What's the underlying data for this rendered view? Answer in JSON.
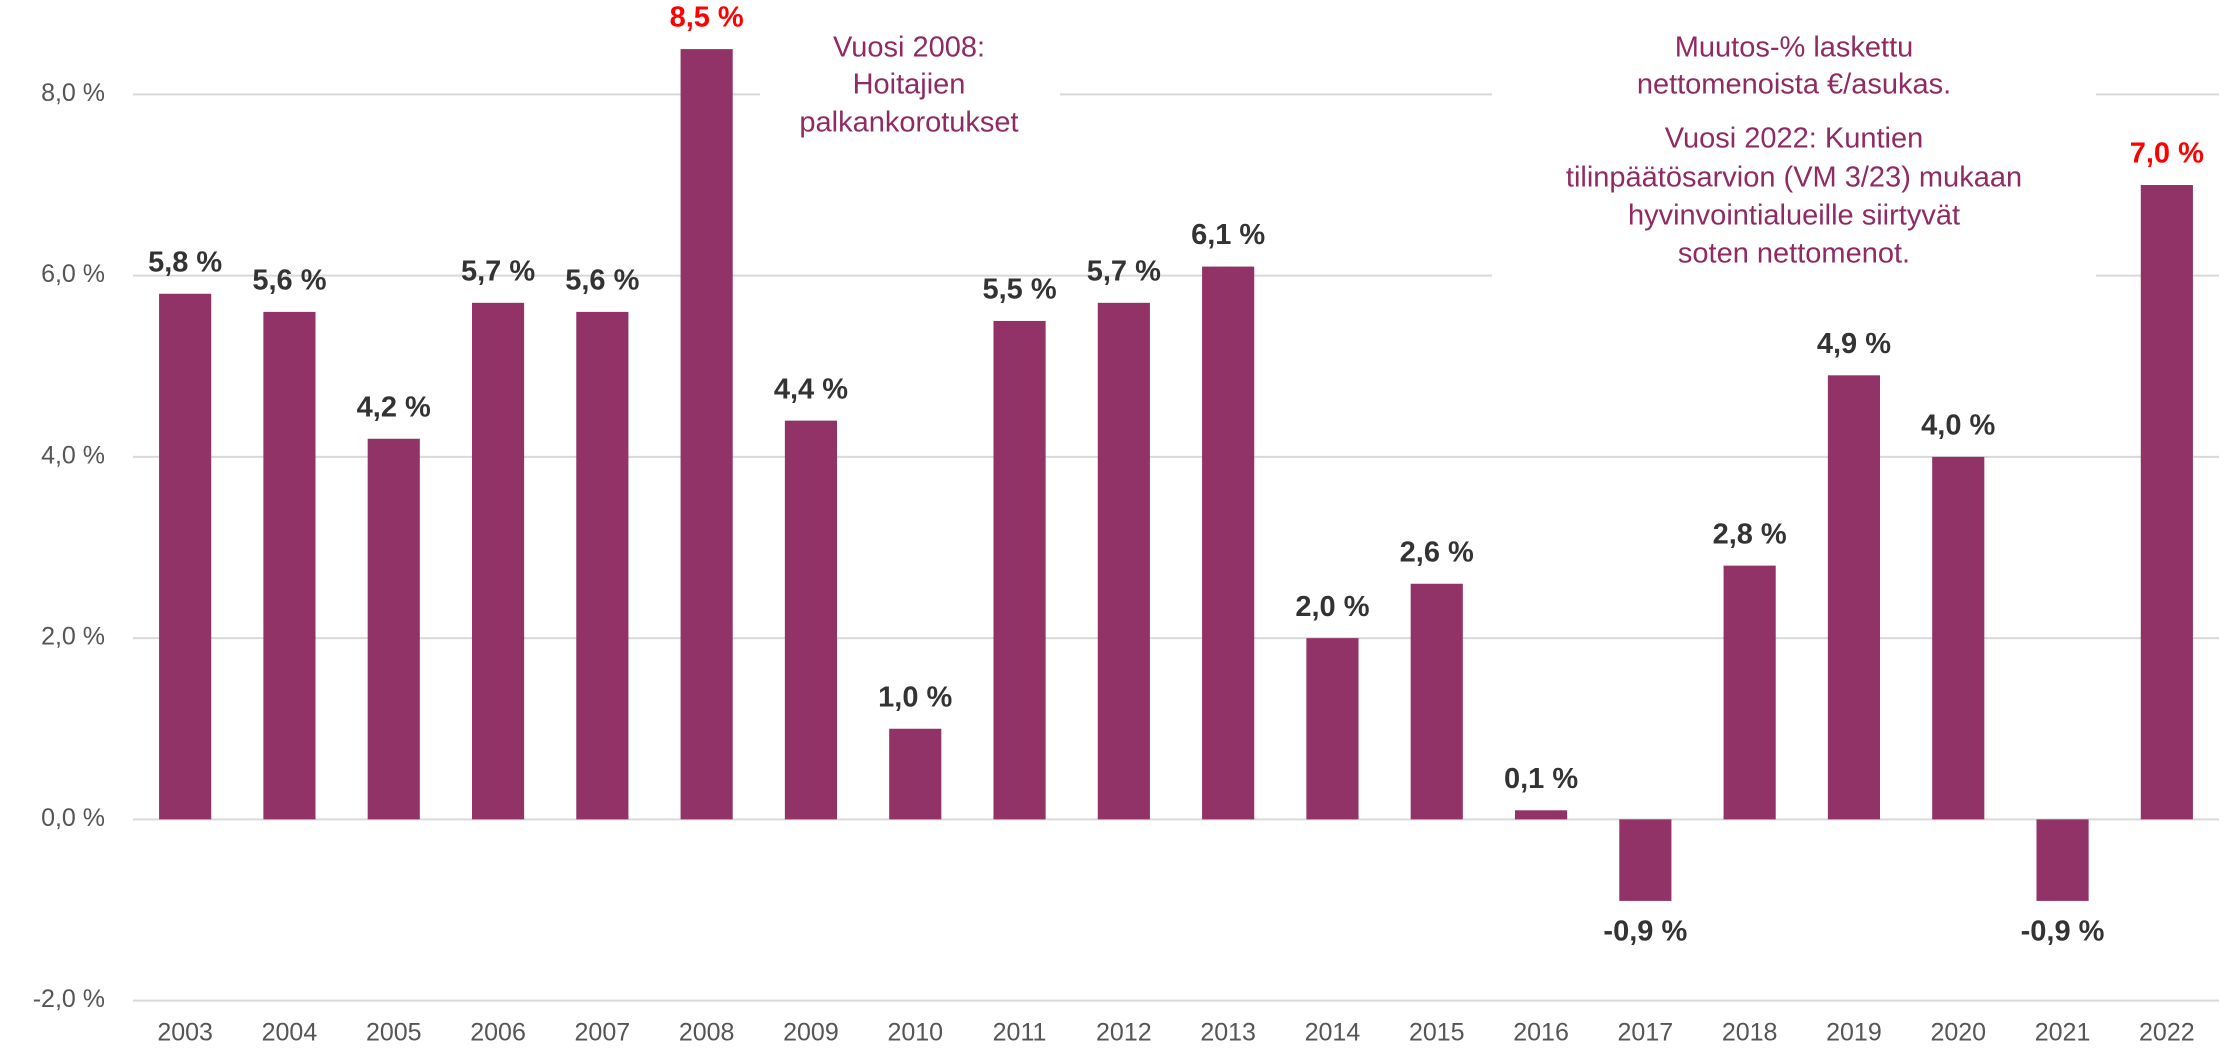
{
  "chart_data": {
    "type": "bar",
    "categories": [
      "2003",
      "2004",
      "2005",
      "2006",
      "2007",
      "2008",
      "2009",
      "2010",
      "2011",
      "2012",
      "2013",
      "2014",
      "2015",
      "2016",
      "2017",
      "2018",
      "2019",
      "2020",
      "2021",
      "2022"
    ],
    "values": [
      5.8,
      5.6,
      4.2,
      5.7,
      5.6,
      8.5,
      4.4,
      1.0,
      5.5,
      5.7,
      6.1,
      2.0,
      2.6,
      0.1,
      -0.9,
      2.8,
      4.9,
      4.0,
      -0.9,
      7.0
    ],
    "value_labels": [
      "5,8 %",
      "5,6 %",
      "4,2 %",
      "5,7 %",
      "5,6 %",
      "8,5 %",
      "4,4 %",
      "1,0 %",
      "5,5 %",
      "5,7 %",
      "6,1 %",
      "2,0 %",
      "2,6 %",
      "0,1 %",
      "-0,9 %",
      "2,8 %",
      "4,9 %",
      "4,0 %",
      "-0,9 %",
      "7,0 %"
    ],
    "value_label_colors": [
      "#333333",
      "#333333",
      "#333333",
      "#333333",
      "#333333",
      "#ff0000",
      "#333333",
      "#333333",
      "#333333",
      "#333333",
      "#333333",
      "#333333",
      "#333333",
      "#333333",
      "#333333",
      "#333333",
      "#333333",
      "#333333",
      "#333333",
      "#ff0000"
    ],
    "color": "#913366",
    "ylim": [
      -2,
      8
    ],
    "yticks": [
      {
        "value": -2,
        "label": "-2,0 %"
      },
      {
        "value": 0,
        "label": "0,0 %"
      },
      {
        "value": 2,
        "label": "2,0 %"
      },
      {
        "value": 4,
        "label": "4,0 %"
      },
      {
        "value": 6,
        "label": "6,0 %"
      },
      {
        "value": 8,
        "label": "8,0 %"
      }
    ],
    "grid": true,
    "annotations": [
      [
        "Vuosi 2008:",
        "Hoitajien",
        "palkankorotukset"
      ],
      [
        "Muutos-% laskettu",
        "nettomenoista €/asukas."
      ],
      [
        "Vuosi 2022: Kuntien",
        "tilinpäätösarvion (VM 3/23) mukaan",
        "hyvinvointialueille siirtyvät",
        "soten nettomenot."
      ]
    ]
  }
}
